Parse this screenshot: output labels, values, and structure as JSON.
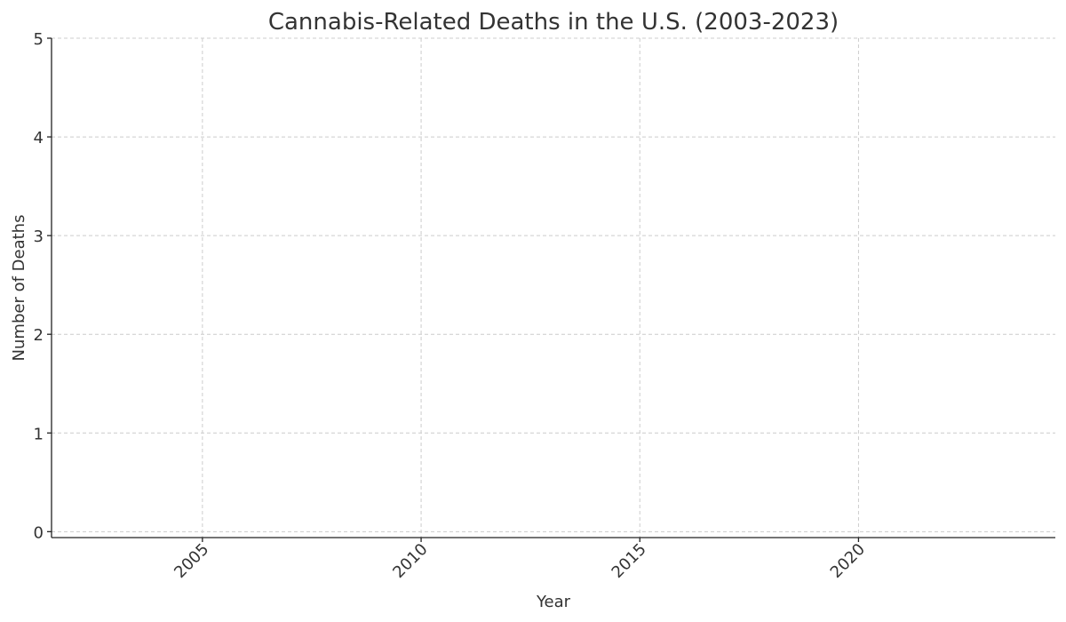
{
  "chart_data": {
    "type": "line",
    "title": "Cannabis-Related Deaths in the U.S. (2003-2023)",
    "x_label": "Year",
    "y_label": "Number of Deaths",
    "xlim": [
      2001.55,
      2024.5
    ],
    "xticks": [
      2005,
      2010,
      2015,
      2020
    ],
    "ylim": [
      -0.06,
      5
    ],
    "yticks": [
      0,
      1,
      2,
      3,
      4,
      5
    ],
    "grid": true
  }
}
